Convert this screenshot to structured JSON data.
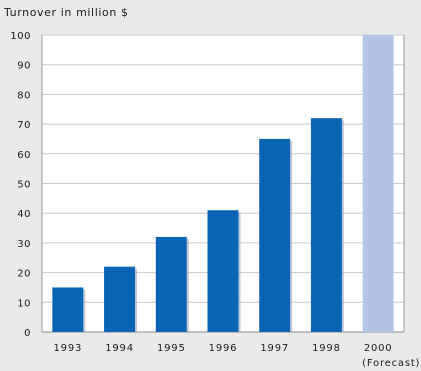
{
  "chart_data": {
    "type": "bar",
    "title": "Turnover in million $",
    "xlabel": "",
    "ylabel": "Turnover in million $",
    "categories": [
      "1993",
      "1994",
      "1995",
      "1996",
      "1997",
      "1998",
      "2000"
    ],
    "category_notes": [
      "",
      "",
      "",
      "",
      "",
      "",
      "(Forecast)"
    ],
    "values": [
      15,
      22,
      32,
      41,
      65,
      72,
      100
    ],
    "forecast": [
      false,
      false,
      false,
      false,
      false,
      false,
      true
    ],
    "ylim": [
      0,
      100
    ],
    "yticks": [
      0,
      10,
      20,
      30,
      40,
      50,
      60,
      70,
      80,
      90,
      100
    ],
    "grid": true,
    "colors": {
      "actual": "#0a64b4",
      "forecast": "#b3c3e6",
      "plot_background": "#ffffff",
      "grid": "#cccccc",
      "page_background": "#e9eaec"
    }
  }
}
